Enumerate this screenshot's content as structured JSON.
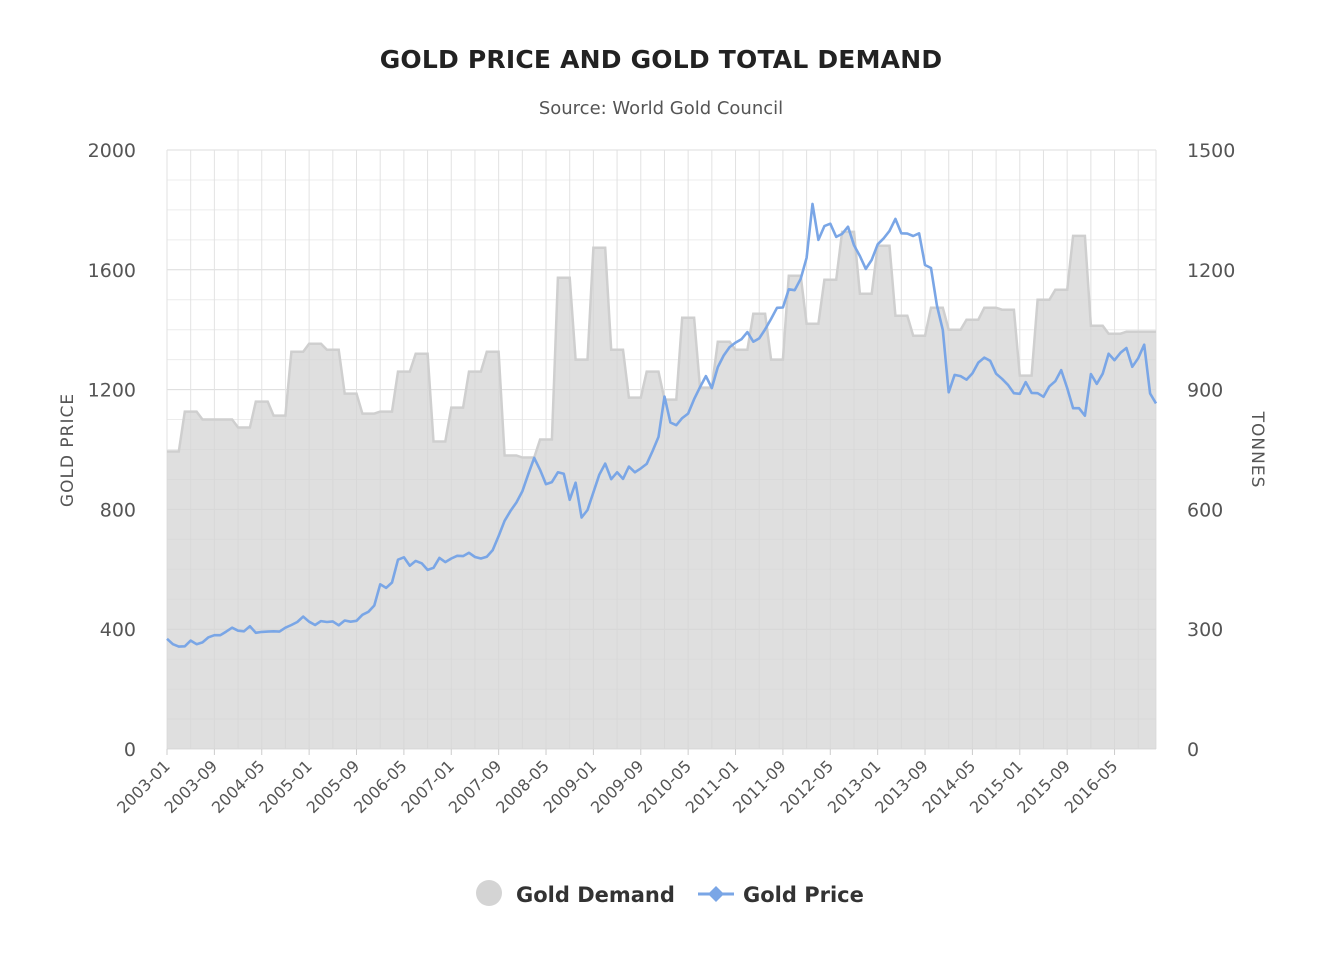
{
  "chart_data": {
    "type": "line",
    "title": "GOLD PRICE AND GOLD TOTAL DEMAND",
    "subtitle": "Source: World Gold Council",
    "y_left_label": "GOLD PRICE",
    "y_right_label": "TONNES",
    "y_left_ticks": [
      "0",
      "400",
      "800",
      "1200",
      "1600",
      "2000"
    ],
    "y_right_ticks": [
      "0",
      "300",
      "600",
      "900",
      "1200",
      "1500"
    ],
    "y_left_range": [
      0,
      2000
    ],
    "y_right_range": [
      0,
      1500
    ],
    "x_tick_labels": [
      "2003-01",
      "2003-09",
      "2004-05",
      "2005-01",
      "2005-09",
      "2006-05",
      "2007-01",
      "2007-09",
      "2008-05",
      "2009-01",
      "2009-09",
      "2010-05",
      "2011-01",
      "2011-09",
      "2012-05",
      "2013-01",
      "2013-09",
      "2014-05",
      "2015-01",
      "2015-09",
      "2016-05"
    ],
    "x_start": "2003-01",
    "x_end": "2016-12",
    "grid": true,
    "legend_position": "bottom-center",
    "colors": {
      "demand": "#d4d4d4",
      "price": "#7aa6e6"
    },
    "series": [
      {
        "name": "Gold Demand",
        "type": "area",
        "axis": "right",
        "quarterly": [
          {
            "x": "2003-01",
            "y": 745
          },
          {
            "x": "2003-04",
            "y": 845
          },
          {
            "x": "2003-07",
            "y": 825
          },
          {
            "x": "2003-10",
            "y": 825
          },
          {
            "x": "2004-01",
            "y": 805
          },
          {
            "x": "2004-04",
            "y": 870
          },
          {
            "x": "2004-07",
            "y": 835
          },
          {
            "x": "2004-10",
            "y": 995
          },
          {
            "x": "2005-01",
            "y": 1015
          },
          {
            "x": "2005-04",
            "y": 1000
          },
          {
            "x": "2005-07",
            "y": 890
          },
          {
            "x": "2005-10",
            "y": 840
          },
          {
            "x": "2006-01",
            "y": 845
          },
          {
            "x": "2006-04",
            "y": 945
          },
          {
            "x": "2006-07",
            "y": 990
          },
          {
            "x": "2006-10",
            "y": 770
          },
          {
            "x": "2007-01",
            "y": 855
          },
          {
            "x": "2007-04",
            "y": 945
          },
          {
            "x": "2007-07",
            "y": 995
          },
          {
            "x": "2007-10",
            "y": 735
          },
          {
            "x": "2008-01",
            "y": 730
          },
          {
            "x": "2008-04",
            "y": 775
          },
          {
            "x": "2008-07",
            "y": 1180
          },
          {
            "x": "2008-10",
            "y": 975
          },
          {
            "x": "2009-01",
            "y": 1255
          },
          {
            "x": "2009-04",
            "y": 1000
          },
          {
            "x": "2009-07",
            "y": 880
          },
          {
            "x": "2009-10",
            "y": 945
          },
          {
            "x": "2010-01",
            "y": 875
          },
          {
            "x": "2010-04",
            "y": 1080
          },
          {
            "x": "2010-07",
            "y": 905
          },
          {
            "x": "2010-10",
            "y": 1020
          },
          {
            "x": "2011-01",
            "y": 1000
          },
          {
            "x": "2011-04",
            "y": 1090
          },
          {
            "x": "2011-07",
            "y": 975
          },
          {
            "x": "2011-10",
            "y": 1185
          },
          {
            "x": "2012-01",
            "y": 1065
          },
          {
            "x": "2012-04",
            "y": 1175
          },
          {
            "x": "2012-07",
            "y": 1295
          },
          {
            "x": "2012-10",
            "y": 1140
          },
          {
            "x": "2013-01",
            "y": 1260
          },
          {
            "x": "2013-04",
            "y": 1085
          },
          {
            "x": "2013-07",
            "y": 1035
          },
          {
            "x": "2013-10",
            "y": 1105
          },
          {
            "x": "2014-01",
            "y": 1050
          },
          {
            "x": "2014-04",
            "y": 1075
          },
          {
            "x": "2014-07",
            "y": 1105
          },
          {
            "x": "2014-10",
            "y": 1100
          },
          {
            "x": "2015-01",
            "y": 935
          },
          {
            "x": "2015-04",
            "y": 1125
          },
          {
            "x": "2015-07",
            "y": 1150
          },
          {
            "x": "2015-10",
            "y": 1285
          },
          {
            "x": "2016-01",
            "y": 1060
          },
          {
            "x": "2016-04",
            "y": 1040
          },
          {
            "x": "2016-07",
            "y": 1045
          },
          {
            "x": "2016-10",
            "y": 1045
          }
        ]
      },
      {
        "name": "Gold Price",
        "type": "line",
        "axis": "left",
        "start": "2003-01",
        "step": "month",
        "values": [
          368,
          350,
          342,
          343,
          362,
          350,
          356,
          373,
          380,
          380,
          392,
          405,
          395,
          393,
          410,
          388,
          391,
          392,
          393,
          392,
          405,
          414,
          424,
          442,
          425,
          414,
          427,
          424,
          426,
          413,
          429,
          425,
          428,
          448,
          458,
          479,
          550,
          538,
          556,
          632,
          640,
          612,
          628,
          620,
          598,
          605,
          638,
          624,
          636,
          645,
          644,
          655,
          641,
          636,
          642,
          664,
          711,
          762,
          795,
          823,
          860,
          918,
          972,
          932,
          884,
          891,
          924,
          919,
          832,
          889,
          773,
          798,
          857,
          916,
          953,
          901,
          924,
          902,
          943,
          924,
          937,
          952,
          995,
          1042,
          1177,
          1090,
          1081,
          1105,
          1120,
          1168,
          1208,
          1245,
          1205,
          1275,
          1314,
          1342,
          1357,
          1368,
          1392,
          1360,
          1371,
          1401,
          1436,
          1473,
          1474,
          1535,
          1532,
          1570,
          1640,
          1820,
          1700,
          1746,
          1754,
          1710,
          1720,
          1744,
          1682,
          1646,
          1603,
          1633,
          1685,
          1705,
          1730,
          1770,
          1722,
          1721,
          1713,
          1722,
          1616,
          1606,
          1481,
          1399,
          1191,
          1249,
          1245,
          1233,
          1254,
          1290,
          1307,
          1296,
          1253,
          1236,
          1216,
          1188,
          1186,
          1225,
          1189,
          1188,
          1176,
          1211,
          1228,
          1265,
          1205,
          1138,
          1138,
          1113,
          1252,
          1219,
          1253,
          1320,
          1298,
          1323,
          1339,
          1276,
          1305,
          1350,
          1187,
          1154
        ]
      }
    ]
  }
}
